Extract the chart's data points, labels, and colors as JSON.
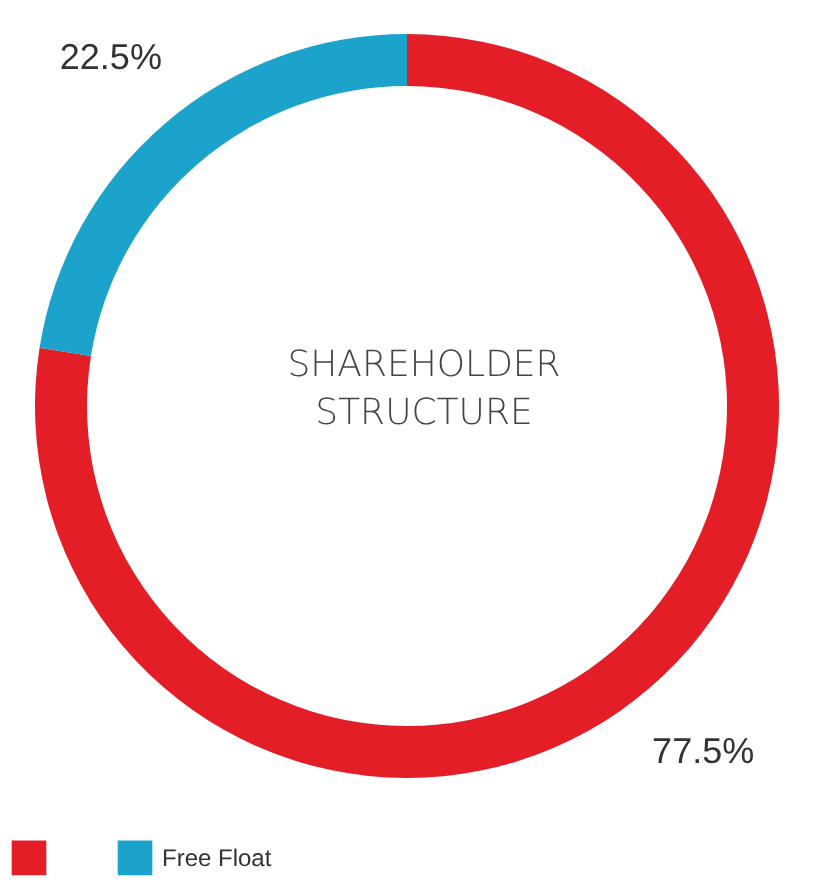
{
  "chart_data": {
    "type": "donut",
    "title": "SHAREHOLDER STRUCTURE",
    "categories": [
      null,
      "Free Float"
    ],
    "values": [
      77.5,
      22.5
    ],
    "colors": [
      "#e31e26",
      "#1ba3cb"
    ],
    "value_labels": [
      "77.5%",
      "22.5%"
    ],
    "legend": "bottom"
  }
}
